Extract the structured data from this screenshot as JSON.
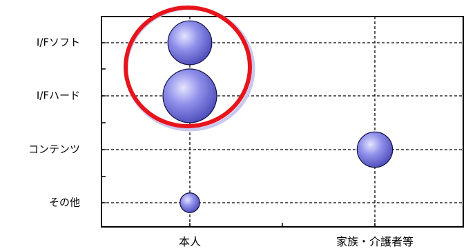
{
  "chart_data": {
    "type": "scatter",
    "title": "",
    "xlabel": "",
    "ylabel": "",
    "x_categories": [
      "本人",
      "家族・介護者等"
    ],
    "y_categories": [
      "I/Fソフト",
      "I/Fハード",
      "コンテンツ",
      "その他"
    ],
    "grid": true,
    "series": [
      {
        "points": [
          {
            "x": "本人",
            "y": "I/Fソフト",
            "size": 2
          },
          {
            "x": "本人",
            "y": "I/Fハード",
            "size": 3
          },
          {
            "x": "家族・介護者等",
            "y": "コンテンツ",
            "size": 1.3
          },
          {
            "x": "本人",
            "y": "その他",
            "size": 0.4
          }
        ]
      }
    ],
    "annotation": {
      "shape": "circle",
      "color": "#e8141b",
      "target": "本人 I/Fソフト・I/Fハード"
    }
  },
  "colors": {
    "bubble": "#8b8be8",
    "bubble_edge": "#111144",
    "highlight": "#e8141b"
  }
}
